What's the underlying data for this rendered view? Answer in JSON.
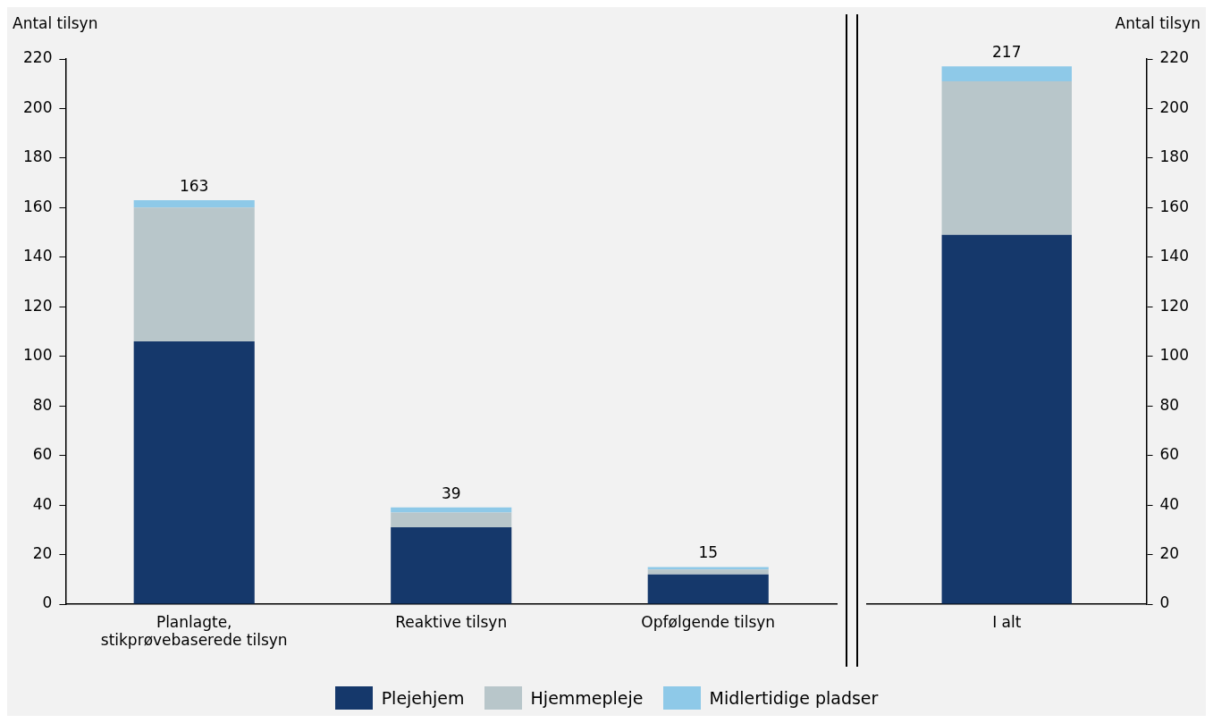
{
  "chart_data": [
    {
      "type": "bar",
      "ylabel": "Antal tilsyn",
      "categories": [
        "Planlagte, stikprøvebaserede tilsyn",
        "Reaktive tilsyn",
        "Opfølgende tilsyn"
      ],
      "stacked": true,
      "legend": "bottom",
      "ylim": [
        0,
        220
      ],
      "yticks": [
        0,
        20,
        40,
        60,
        80,
        100,
        120,
        140,
        160,
        180,
        200,
        220
      ],
      "totals": [
        "163",
        "39",
        "15"
      ],
      "series": [
        {
          "name": "Plejehjem",
          "color": "#15386b",
          "values": [
            106,
            31,
            12
          ]
        },
        {
          "name": "Hjemmepleje",
          "color": "#b8c6ca",
          "values": [
            54,
            6,
            2
          ]
        },
        {
          "name": "Midlertidige pladser",
          "color": "#8ec9e8",
          "values": [
            3,
            2,
            1
          ]
        }
      ]
    },
    {
      "type": "bar",
      "y2label": "Antal tilsyn",
      "categories": [
        "I alt"
      ],
      "stacked": true,
      "y2lim": [
        0,
        220
      ],
      "y2ticks": [
        0,
        20,
        40,
        60,
        80,
        100,
        120,
        140,
        160,
        180,
        200,
        220
      ],
      "totals": [
        "217"
      ],
      "series": [
        {
          "color": "#15386b",
          "values": [
            149
          ],
          "axis": "y2"
        },
        {
          "color": "#b8c6ca",
          "values": [
            62
          ],
          "axis": "y2"
        },
        {
          "color": "#8ec9e8",
          "values": [
            6
          ],
          "axis": "y2"
        }
      ]
    }
  ]
}
